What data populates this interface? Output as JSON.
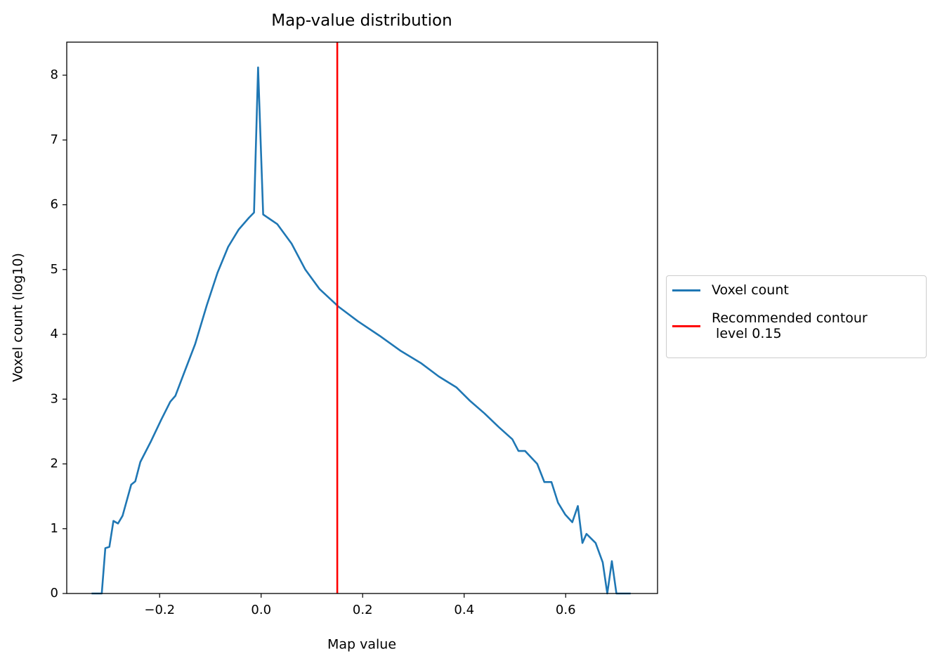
{
  "chart_data": {
    "type": "line",
    "title": "Map-value distribution",
    "x_label": "Map value",
    "y_label": "Voxel count (log10)",
    "x": [
      -0.334,
      -0.314,
      -0.307,
      -0.299,
      -0.291,
      -0.282,
      -0.273,
      -0.256,
      -0.248,
      -0.238,
      -0.217,
      -0.197,
      -0.179,
      -0.169,
      -0.152,
      -0.13,
      -0.107,
      -0.086,
      -0.065,
      -0.044,
      -0.024,
      -0.014,
      -0.006,
      0.004,
      0.032,
      0.06,
      0.087,
      0.115,
      0.152,
      0.191,
      0.233,
      0.274,
      0.316,
      0.35,
      0.385,
      0.412,
      0.44,
      0.468,
      0.495,
      0.507,
      0.52,
      0.544,
      0.558,
      0.572,
      0.585,
      0.599,
      0.613,
      0.624,
      0.633,
      0.641,
      0.659,
      0.673,
      0.682,
      0.691,
      0.7,
      0.728
    ],
    "series": [
      {
        "name": "Voxel count",
        "color": "#1f77b4",
        "values": [
          0,
          0,
          0.7,
          0.72,
          1.12,
          1.08,
          1.2,
          1.68,
          1.73,
          2.03,
          2.35,
          2.68,
          2.96,
          3.05,
          3.4,
          3.85,
          4.45,
          4.95,
          5.35,
          5.62,
          5.8,
          5.88,
          8.12,
          5.85,
          5.7,
          5.4,
          5.0,
          4.7,
          4.43,
          4.2,
          3.98,
          3.75,
          3.55,
          3.35,
          3.18,
          2.97,
          2.78,
          2.57,
          2.38,
          2.2,
          2.2,
          2.0,
          1.72,
          1.72,
          1.4,
          1.22,
          1.1,
          1.35,
          0.78,
          0.92,
          0.78,
          0.48,
          0,
          0.5,
          0,
          0
        ]
      }
    ],
    "vlines": [
      {
        "name": "Recommended contour\n level 0.15",
        "value": 0.15,
        "color": "#ff0000"
      }
    ],
    "xlim": [
      -0.383,
      0.781
    ],
    "ylim": [
      0,
      8.51
    ],
    "xticks": [
      {
        "value": -0.2,
        "label": "−0.2"
      },
      {
        "value": 0,
        "label": "0.0"
      },
      0.2,
      0.4,
      0.6
    ],
    "yticks": [
      0,
      1,
      2,
      3,
      4,
      5,
      6,
      7,
      8
    ],
    "grid": false,
    "legend": "outside-right"
  }
}
